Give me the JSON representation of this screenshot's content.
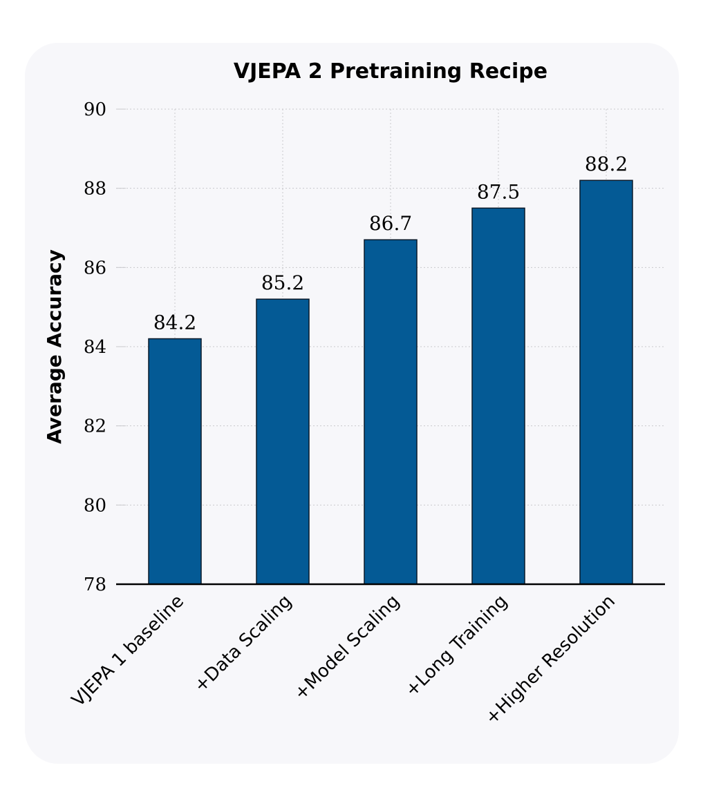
{
  "chart_data": {
    "type": "bar",
    "title": "VJEPA 2 Pretraining Recipe",
    "xlabel": "",
    "ylabel": "Average Accuracy",
    "ylim": [
      78,
      90
    ],
    "yticks": [
      78,
      80,
      82,
      84,
      86,
      88,
      90
    ],
    "grid": true,
    "categories": [
      "VJEPA 1 baseline",
      "+Data Scaling",
      "+Model Scaling",
      "+Long Training",
      "+Higher Resolution"
    ],
    "values": [
      84.2,
      85.2,
      86.7,
      87.5,
      88.2
    ],
    "value_labels": [
      "84.2",
      "85.2",
      "86.7",
      "87.5",
      "88.2"
    ],
    "bar_color": "#045a95"
  }
}
